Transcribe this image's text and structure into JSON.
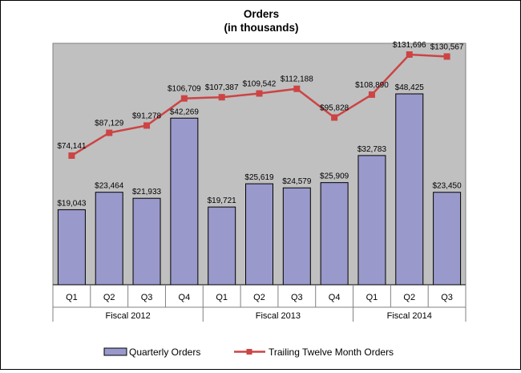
{
  "chart_data": {
    "type": "bar",
    "title": "Orders",
    "subtitle": "(in thousands)",
    "categories": [
      "Q1",
      "Q2",
      "Q3",
      "Q4",
      "Q1",
      "Q2",
      "Q3",
      "Q4",
      "Q1",
      "Q2",
      "Q3"
    ],
    "groups": [
      {
        "label": "Fiscal 2012",
        "count": 4
      },
      {
        "label": "Fiscal 2013",
        "count": 4
      },
      {
        "label": "Fiscal 2014",
        "count": 3
      }
    ],
    "series": [
      {
        "name": "Quarterly Orders",
        "type": "bar",
        "color": "#9999cc",
        "values": [
          19043,
          23464,
          21933,
          42269,
          19721,
          25619,
          24579,
          25909,
          32783,
          48425,
          23450
        ],
        "labels": [
          "$19,043",
          "$23,464",
          "$21,933",
          "$42,269",
          "$19,721",
          "$25,619",
          "$24,579",
          "$25,909",
          "$32,783",
          "$48,425",
          "$23,450"
        ]
      },
      {
        "name": "Trailing Twelve Month Orders",
        "type": "line",
        "color": "#cc4444",
        "values": [
          74141,
          87129,
          91278,
          106709,
          107387,
          109542,
          112188,
          95828,
          108890,
          131696,
          130567
        ],
        "labels": [
          "$74,141",
          "$87,129",
          "$91,278",
          "$106,709",
          "$107,387",
          "$109,542",
          "$112,188",
          "$95,828",
          "$108,890",
          "$131,696",
          "$130,567"
        ]
      }
    ],
    "plot_background": "#c0c0c0",
    "grid": false,
    "legend": "bottom"
  }
}
